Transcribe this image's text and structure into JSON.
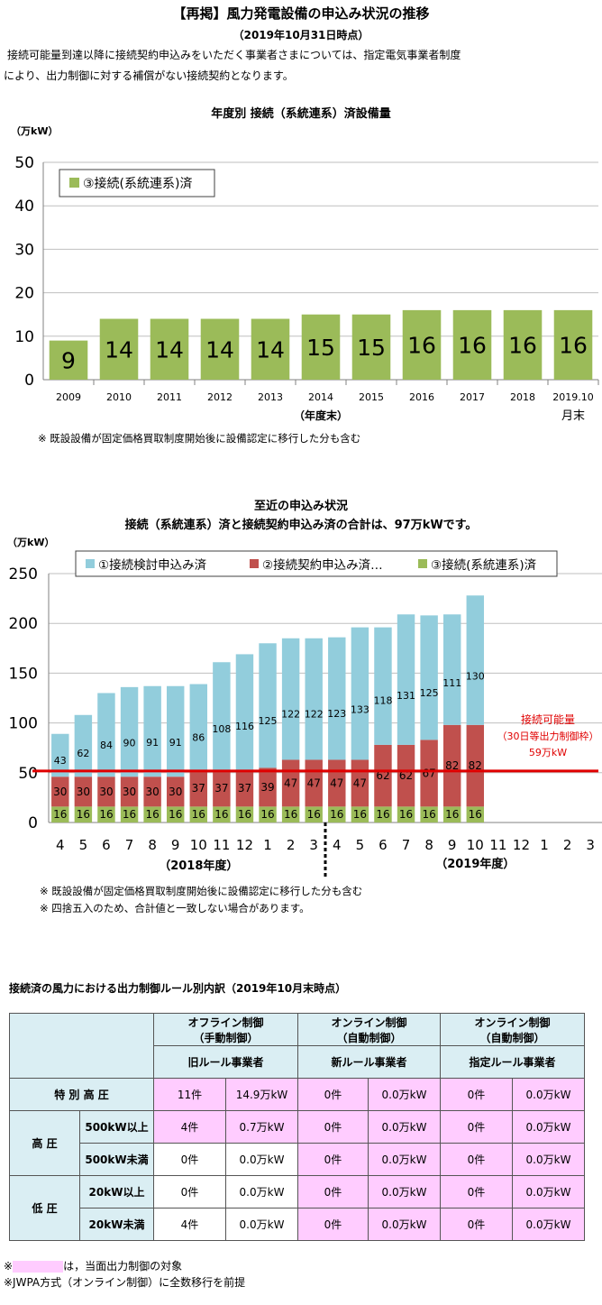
{
  "header": {
    "title": "【再掲】風力発電設備の申込み状況の推移",
    "date": "（2019年10月31日時点）",
    "intro_line1": "接続可能量到達以降に接続契約申込みをいただく事業者さまについては、指定電気事業者制度",
    "intro_line2": "により、出力制御に対する補償がない接続契約となります。"
  },
  "chart1": {
    "title": "年度別 接続（系統連系）済設備量",
    "unit": "（万kW）",
    "note": "※ 既設設備が固定価格買取制度開始後に設備認定に移行した分も含む",
    "xlabel_extra": "（年度末）",
    "last_tick_sub": "月末"
  },
  "chart2": {
    "title_line1": "至近の申込み状況",
    "title_line2": "接続（系統連系）済と接続契約申込み済の合計は、97万kWです。",
    "unit": "（万kW）",
    "fy2018": "（2018年度）",
    "fy2019": "（2019年度）",
    "limit_line1": "接続可能量",
    "limit_line2": "（30日等出力制御枠）",
    "limit_line3": "59万kW",
    "note1": "※ 既設設備が固定価格買取制度開始後に設備認定に移行した分も含む",
    "note2": "※ 四捨五入のため、合計値と一致しない場合があります。"
  },
  "chart_data": [
    {
      "type": "bar",
      "title": "年度別 接続（系統連系）済設備量",
      "ylabel": "（万kW）",
      "xlabel": "（年度末）",
      "ylim": [
        0,
        50
      ],
      "yticks": [
        0,
        10,
        20,
        30,
        40,
        50
      ],
      "grid": true,
      "legend": "top-left",
      "categories": [
        "2009",
        "2010",
        "2011",
        "2012",
        "2013",
        "2014",
        "2015",
        "2016",
        "2017",
        "2018",
        "2019.10"
      ],
      "series": [
        {
          "name": "③接続(系統連系)済",
          "color": "#9bbb59",
          "values": [
            9,
            14,
            14,
            14,
            14,
            15,
            15,
            16,
            16,
            16,
            16
          ]
        }
      ]
    },
    {
      "type": "bar",
      "stacked": true,
      "ylabel": "（万kW）",
      "ylim": [
        0,
        250
      ],
      "yticks": [
        0,
        50,
        100,
        150,
        200,
        250
      ],
      "grid": true,
      "legend": "top",
      "categories": [
        "4",
        "5",
        "6",
        "7",
        "8",
        "9",
        "10",
        "11",
        "12",
        "1",
        "2",
        "3",
        "4",
        "5",
        "6",
        "7",
        "8",
        "9",
        "10",
        "11",
        "12",
        "1",
        "2",
        "3"
      ],
      "reference_line": {
        "label": "接続可能量（30日等出力制御枠）59万kW",
        "value": 59,
        "color": "#e00000"
      },
      "series": [
        {
          "name": "③接続(系統連系)済",
          "color": "#9bbb59",
          "values": [
            16,
            16,
            16,
            16,
            16,
            16,
            16,
            16,
            16,
            16,
            16,
            16,
            16,
            16,
            16,
            16,
            16,
            16,
            16,
            null,
            null,
            null,
            null,
            null
          ]
        },
        {
          "name": "②接続契約申込み済…",
          "color": "#c0504d",
          "values": [
            30,
            30,
            30,
            30,
            30,
            30,
            37,
            37,
            37,
            39,
            47,
            47,
            47,
            47,
            62,
            62,
            67,
            82,
            82,
            null,
            null,
            null,
            null,
            null
          ]
        },
        {
          "name": "①接続検討申込み済",
          "color": "#92cddc",
          "values": [
            43,
            62,
            84,
            90,
            91,
            91,
            86,
            108,
            116,
            125,
            122,
            122,
            123,
            133,
            118,
            131,
            125,
            111,
            130,
            null,
            null,
            null,
            null,
            null
          ]
        }
      ]
    }
  ],
  "table": {
    "title": "接続済の風力における出力制御ルール別内訳（2019年10月末時点）",
    "groups": [
      {
        "line1": "オフライン制御",
        "line2": "（手動制御）",
        "sub": "旧ルール事業者"
      },
      {
        "line1": "オンライン制御",
        "line2": "（自動制御）",
        "sub": "新ルール事業者"
      },
      {
        "line1": "オンライン制御",
        "line2": "（自動制御）",
        "sub": "指定ルール事業者"
      }
    ],
    "row_tokubetsu": "特 別 高 圧",
    "row_koatsu": "高 圧",
    "row_teiatsu": "低 圧",
    "sub_500_over": "500kW以上",
    "sub_500_under": "500kW未満",
    "sub_20_over": "20kW以上",
    "sub_20_under": "20kW未満",
    "rows": [
      [
        "11件",
        "14.9万kW",
        "0件",
        "0.0万kW",
        "0件",
        "0.0万kW"
      ],
      [
        "4件",
        "0.7万kW",
        "0件",
        "0.0万kW",
        "0件",
        "0.0万kW"
      ],
      [
        "0件",
        "0.0万kW",
        "0件",
        "0.0万kW",
        "0件",
        "0.0万kW"
      ],
      [
        "0件",
        "0.0万kW",
        "0件",
        "0.0万kW",
        "0件",
        "0.0万kW"
      ],
      [
        "4件",
        "0.0万kW",
        "0件",
        "0.0万kW",
        "0件",
        "0.0万kW"
      ]
    ],
    "note1_suffix": "は，当面出力制御の対象",
    "note1_prefix": "※",
    "note2": "※JWPA方式（オンライン制御）に全数移行を前提"
  }
}
